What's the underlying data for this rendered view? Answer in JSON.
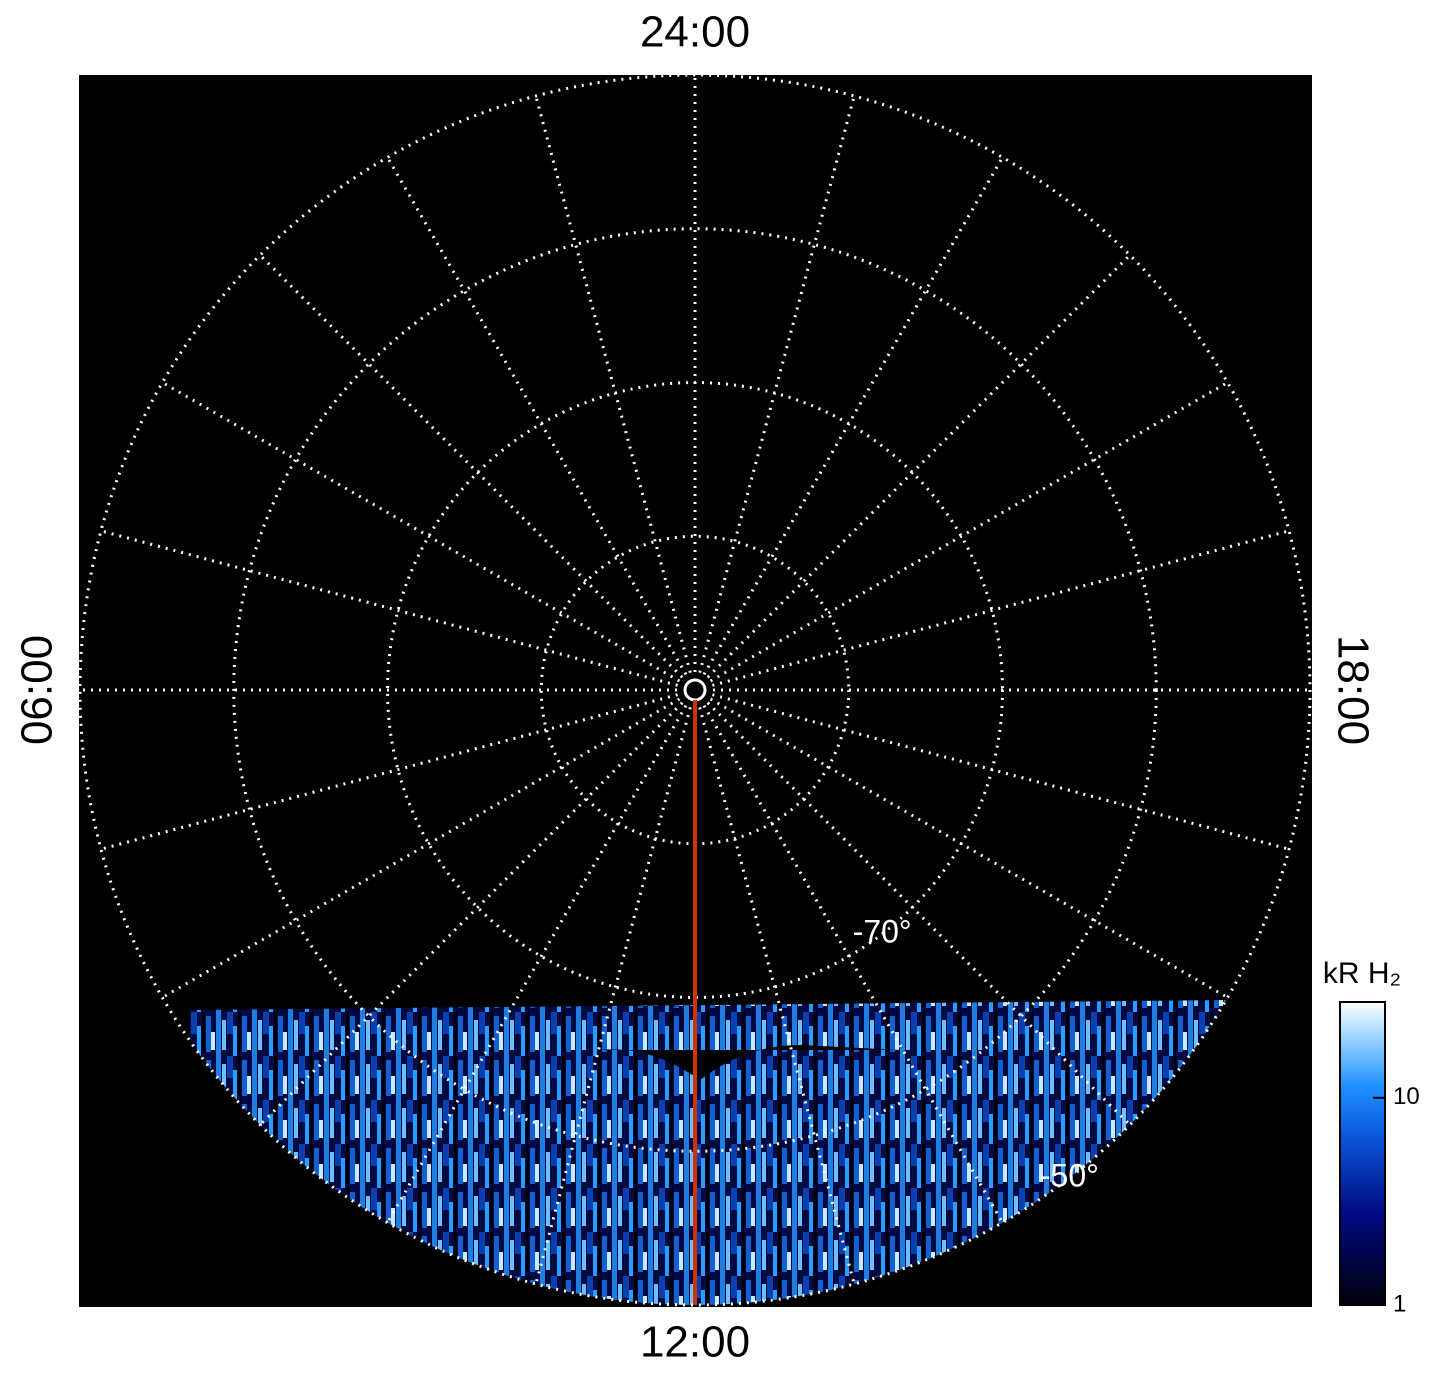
{
  "chart_data": {
    "type": "polar",
    "rlim": [
      -90,
      -50
    ],
    "rticks": [
      -80,
      {
        "value": -70,
        "label": "-70°"
      },
      -60,
      {
        "value": -50,
        "label": "-50°"
      }
    ],
    "xticks": [
      1,
      2,
      3,
      4,
      5,
      {
        "value": 6,
        "label": "06:00"
      },
      7,
      8,
      9,
      10,
      11,
      {
        "value": 12,
        "label": "12:00"
      },
      13,
      14,
      15,
      16,
      17,
      {
        "value": 18,
        "label": "18:00"
      },
      19,
      20,
      21,
      22,
      23,
      {
        "value": 24,
        "label": "24:00"
      }
    ],
    "grid": true,
    "meridian_line": {
      "hour": 12,
      "color": "#cc3300"
    },
    "colorbar": {
      "title": "kR H₂",
      "log_scale": true,
      "ylim": [
        1,
        29
      ],
      "yticks": [
        1,
        10
      ]
    }
  }
}
